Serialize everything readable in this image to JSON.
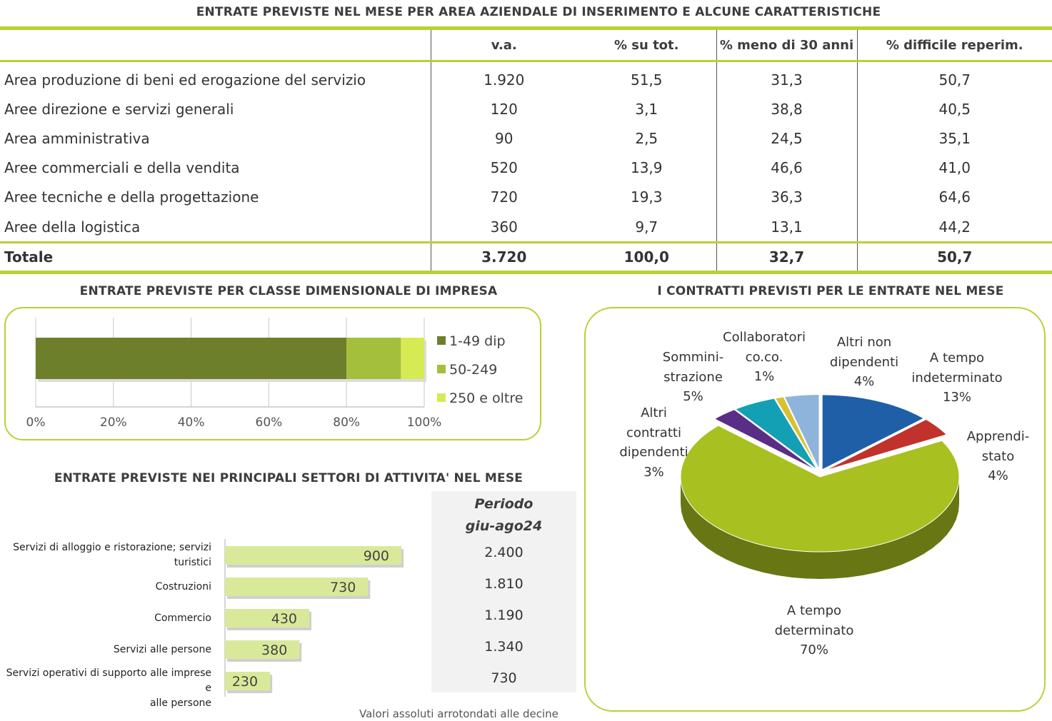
{
  "table": {
    "title": "ENTRATE PREVISTE NEL MESE PER AREA AZIENDALE DI INSERIMENTO E ALCUNE CARATTERISTICHE",
    "headers": [
      "",
      "v.a.",
      "% su tot.",
      "% meno di 30 anni",
      "% difficile reperim."
    ],
    "rows": [
      {
        "area": "Area produzione di beni ed erogazione del servizio",
        "va": "1.920",
        "pct_tot": "51,5",
        "pct_under30": "31,3",
        "pct_difficult": "50,7"
      },
      {
        "area": "Aree direzione e servizi generali",
        "va": "120",
        "pct_tot": "3,1",
        "pct_under30": "38,8",
        "pct_difficult": "40,5"
      },
      {
        "area": "Area amministrativa",
        "va": "90",
        "pct_tot": "2,5",
        "pct_under30": "24,5",
        "pct_difficult": "35,1"
      },
      {
        "area": "Aree commerciali e della vendita",
        "va": "520",
        "pct_tot": "13,9",
        "pct_under30": "46,6",
        "pct_difficult": "41,0"
      },
      {
        "area": "Aree tecniche e della progettazione",
        "va": "720",
        "pct_tot": "19,3",
        "pct_under30": "36,3",
        "pct_difficult": "64,6"
      },
      {
        "area": "Aree della logistica",
        "va": "360",
        "pct_tot": "9,7",
        "pct_under30": "13,1",
        "pct_difficult": "44,2"
      }
    ],
    "total": {
      "area": "Totale",
      "va": "3.720",
      "pct_tot": "100,0",
      "pct_under30": "32,7",
      "pct_difficult": "50,7"
    }
  },
  "colors": {
    "accent": "#b5d334",
    "dark_green": "#6e7f2b",
    "mid_green": "#a4bf3c",
    "light_green": "#d6ea53",
    "sector_bar": "#d9e99a"
  },
  "chart_data": [
    {
      "type": "bar",
      "orientation": "horizontal-stacked",
      "title": "ENTRATE PREVISTE PER CLASSE DIMENSIONALE DI IMPRESA",
      "categories": [
        ""
      ],
      "series": [
        {
          "name": "1-49 dip",
          "values": [
            80
          ],
          "color": "#6e7f2b"
        },
        {
          "name": "50-249",
          "values": [
            14
          ],
          "color": "#a4bf3c"
        },
        {
          "name": "250 e oltre",
          "values": [
            6
          ],
          "color": "#d6ea53"
        }
      ],
      "xlim": [
        0,
        100
      ],
      "xticks": [
        "0%",
        "20%",
        "40%",
        "60%",
        "80%",
        "100%"
      ],
      "grid": true,
      "legend": "right"
    },
    {
      "type": "bar",
      "orientation": "horizontal",
      "title": "ENTRATE PREVISTE NEI PRINCIPALI SETTORI DI ATTIVITA' NEL MESE",
      "categories": [
        [
          "Servizi di alloggio e ristorazione; servizi",
          "turistici"
        ],
        [
          "Costruzioni"
        ],
        [
          "Commercio"
        ],
        [
          "Servizi alle persone"
        ],
        [
          "Servizi operativi di supporto alle imprese e",
          "alle persone"
        ]
      ],
      "values": [
        900,
        730,
        430,
        380,
        230
      ],
      "value_labels": [
        "900",
        "730",
        "430",
        "380",
        "230"
      ],
      "xlim": [
        0,
        1000
      ],
      "period": {
        "header": [
          "Periodo",
          "giu-ago24"
        ],
        "values": [
          "2.400",
          "1.810",
          "1.190",
          "1.340",
          "730"
        ]
      },
      "note": "Valori assoluti arrotondati alle decine"
    },
    {
      "type": "pie",
      "title": "I CONTRATTI PREVISTI PER LE ENTRATE NEL MESE",
      "slices": [
        {
          "label": [
            "A tempo",
            "indeterminato",
            "13%"
          ],
          "value": 13,
          "color": "#1f5fa8"
        },
        {
          "label": [
            "Apprendi-",
            "stato",
            "4%"
          ],
          "value": 4,
          "color": "#c0322b"
        },
        {
          "label": [
            "A tempo",
            "determinato",
            "70%"
          ],
          "value": 70,
          "color": "#a8c020"
        },
        {
          "label": [
            "Altri",
            "contratti",
            "dipendenti",
            "3%"
          ],
          "value": 3,
          "color": "#5a2d86"
        },
        {
          "label": [
            "Sommini-",
            "strazione",
            "5%"
          ],
          "value": 5,
          "color": "#14a0b4"
        },
        {
          "label": [
            "Collaboratori",
            "co.co.",
            "1%"
          ],
          "value": 1,
          "color": "#d8c030"
        },
        {
          "label": [
            "Altri non",
            "dipendenti",
            "4%"
          ],
          "value": 4,
          "color": "#8fb4dc"
        }
      ]
    }
  ]
}
